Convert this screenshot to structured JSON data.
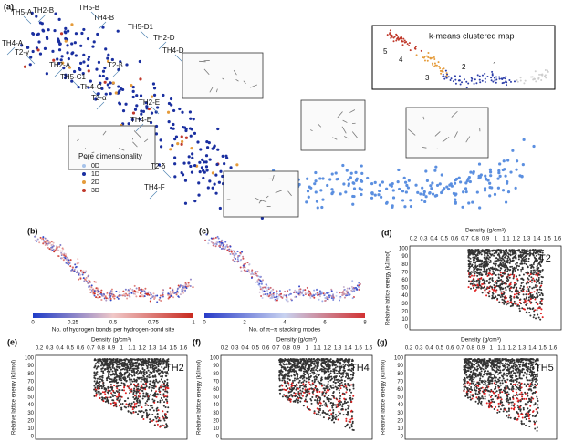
{
  "panel_a": {
    "label": "(a)",
    "annotations": [
      "TH5-A",
      "TH2-B",
      "TH5-B",
      "TH4-B",
      "TH5-D1",
      "TH2-D",
      "TH4-D",
      "TH4-A",
      "T2-γ",
      "TH2-A",
      "TH5-C1",
      "T2-β",
      "TH4-C",
      "T2-α",
      "TH2-E",
      "TH4-E",
      "T2-δ",
      "TH4-F"
    ],
    "inset_title": "k-means clustered map",
    "cluster_labels": [
      "1",
      "2",
      "3",
      "4",
      "5"
    ],
    "legend": {
      "title": "Pore dimensionality",
      "items": [
        "0D",
        "1D",
        "2D",
        "3D"
      ]
    }
  },
  "panel_b": {
    "label": "(b)",
    "colorbar_ticks": [
      "0",
      "0.25",
      "0.5",
      "0.75",
      "1"
    ],
    "colorbar_label": "No. of hydrogen bonds per hydrogen-bond site"
  },
  "panel_c": {
    "label": "(c)",
    "colorbar_ticks": [
      "0",
      "2",
      "4",
      "6",
      "8"
    ],
    "colorbar_label": "No. of π–π stacking modes"
  },
  "density_axis": {
    "title": "Density (g/cm³)",
    "ticks": [
      "0.2",
      "0.3",
      "0.4",
      "0.5",
      "0.6",
      "0.7",
      "0.8",
      "0.9",
      "1",
      "1.1",
      "1.2",
      "1.3",
      "1.4",
      "1.5",
      "1.6"
    ]
  },
  "energy_axis": {
    "title": "Relative lattice energy (kJ/mol)",
    "ticks": [
      "100",
      "90",
      "80",
      "70",
      "60",
      "50",
      "40",
      "30",
      "20",
      "10",
      "0"
    ]
  },
  "energy_panels": [
    {
      "label": "(d)",
      "tag": "T2"
    },
    {
      "label": "(e)",
      "tag": "TH2"
    },
    {
      "label": "(f)",
      "tag": "TH4"
    },
    {
      "label": "(g)",
      "tag": "TH5"
    }
  ]
}
